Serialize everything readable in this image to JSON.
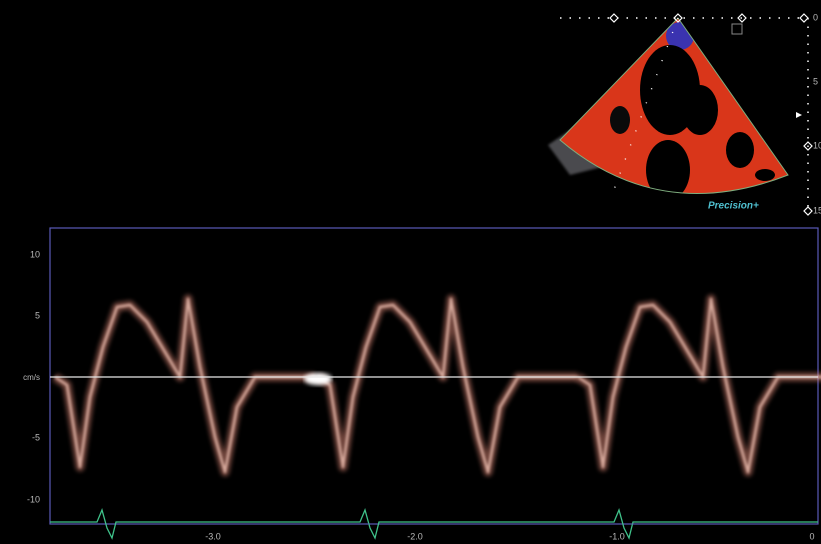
{
  "sector": {
    "depth_labels": [
      "0",
      "5",
      "10",
      "15"
    ],
    "logo": "Precision+"
  },
  "doppler": {
    "y_labels": [
      "10",
      "5",
      "cm/s",
      "-5",
      "-10"
    ],
    "x_labels": [
      "-3.0",
      "-2.0",
      "-1.0",
      "0"
    ]
  }
}
